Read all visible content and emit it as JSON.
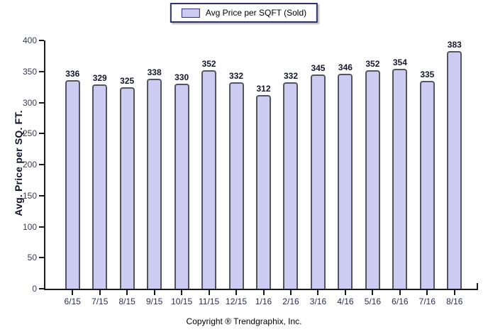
{
  "legend": {
    "label": "Avg Price per SQFT (Sold)"
  },
  "footer": {
    "copyright": "Copyright ® Trendgraphix, Inc."
  },
  "chart_data": {
    "type": "bar",
    "title": "",
    "series_name": "Avg Price per SQFT (Sold)",
    "categories": [
      "6/15",
      "7/15",
      "8/15",
      "9/15",
      "10/15",
      "11/15",
      "12/15",
      "1/16",
      "2/16",
      "3/16",
      "4/16",
      "5/16",
      "6/16",
      "7/16",
      "8/16"
    ],
    "values": [
      336,
      329,
      325,
      338,
      330,
      352,
      332,
      312,
      332,
      345,
      346,
      352,
      354,
      335,
      383
    ],
    "xlabel": "",
    "ylabel": "Avg. Price per SQ. FT.",
    "ylim": [
      0,
      400
    ],
    "y_ticks": [
      0,
      50,
      100,
      150,
      200,
      250,
      300,
      350,
      400
    ],
    "grid": false,
    "legend_position": "top-center",
    "value_labels": true,
    "colors": {
      "bar_fill": "#ccccf2",
      "bar_border": "#55555e",
      "axis": "#1a1a1a",
      "value_label": "#16162e",
      "y_tick_label": "#3a3a52",
      "x_tick_label": "#2e2e4d",
      "legend_border": "#32326b"
    }
  }
}
